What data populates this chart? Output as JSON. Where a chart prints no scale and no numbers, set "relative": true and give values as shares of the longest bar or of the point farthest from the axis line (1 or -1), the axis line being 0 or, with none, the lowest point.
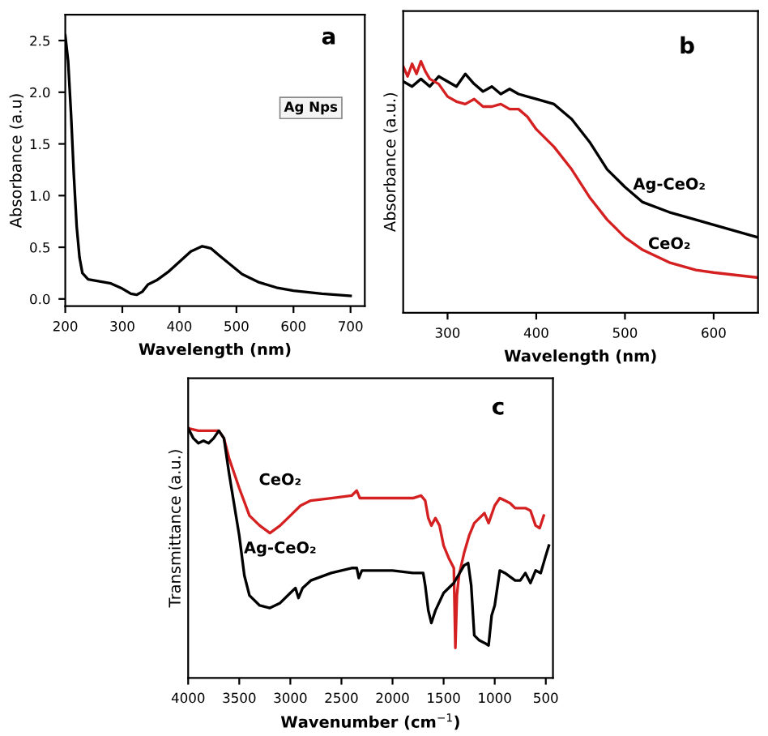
{
  "chart_data": [
    {
      "type": "line",
      "xlabel": "Wavelength (nm)",
      "ylabel": "Absorbance (a.u)",
      "annotations": [
        "a",
        "Ag Nps"
      ],
      "xlim": [
        200,
        725
      ],
      "ylim": [
        -0.07,
        2.75
      ],
      "xticks": [
        200,
        300,
        400,
        500,
        600,
        700
      ],
      "yticks": [
        {
          "value": 0,
          "label": "0.0"
        },
        0.5,
        {
          "value": 1,
          "label": "1.0"
        },
        1.5,
        {
          "value": 2,
          "label": "2.0"
        },
        2.5
      ],
      "grid": false,
      "legend": false,
      "series": [
        {
          "color": "#000000",
          "x": [
            200,
            205,
            210,
            215,
            220,
            225,
            230,
            240,
            260,
            280,
            300,
            315,
            325,
            335,
            345,
            360,
            380,
            400,
            420,
            440,
            455,
            470,
            490,
            510,
            540,
            570,
            600,
            650,
            700
          ],
          "values": [
            2.55,
            2.3,
            1.8,
            1.2,
            0.7,
            0.4,
            0.25,
            0.19,
            0.17,
            0.15,
            0.1,
            0.05,
            0.04,
            0.07,
            0.14,
            0.18,
            0.26,
            0.36,
            0.46,
            0.51,
            0.49,
            0.42,
            0.33,
            0.24,
            0.16,
            0.11,
            0.08,
            0.05,
            0.03
          ]
        }
      ]
    },
    {
      "type": "line",
      "relative": true,
      "xlabel": "Wavelength (nm)",
      "ylabel": "Absorbance (a.u.)",
      "annotations": [
        "b"
      ],
      "xlim": [
        250,
        650
      ],
      "xticks": [
        300,
        400,
        500,
        600
      ],
      "tick_labels": "x",
      "grid": false,
      "legend": false,
      "series": [
        {
          "name": "Ag-CeO₂",
          "color": "#000000",
          "x": [
            250,
            260,
            270,
            280,
            290,
            300,
            310,
            320,
            330,
            340,
            350,
            360,
            370,
            380,
            390,
            400,
            420,
            440,
            460,
            480,
            500,
            520,
            550,
            580,
            600,
            650
          ],
          "values": [
            0.92,
            0.9,
            0.93,
            0.9,
            0.94,
            0.92,
            0.9,
            0.95,
            0.91,
            0.88,
            0.9,
            0.87,
            0.89,
            0.87,
            0.86,
            0.85,
            0.83,
            0.77,
            0.68,
            0.57,
            0.5,
            0.44,
            0.4,
            0.37,
            0.35,
            0.3
          ]
        },
        {
          "name": "CeO₂",
          "color": "#d42020",
          "x": [
            250,
            255,
            260,
            265,
            270,
            275,
            280,
            290,
            300,
            310,
            320,
            330,
            340,
            350,
            360,
            370,
            380,
            390,
            400,
            420,
            440,
            460,
            480,
            500,
            520,
            550,
            580,
            600,
            650
          ],
          "values": [
            0.98,
            0.94,
            0.99,
            0.95,
            1.0,
            0.96,
            0.93,
            0.91,
            0.86,
            0.84,
            0.83,
            0.85,
            0.82,
            0.82,
            0.83,
            0.81,
            0.81,
            0.78,
            0.73,
            0.66,
            0.57,
            0.46,
            0.37,
            0.3,
            0.25,
            0.2,
            0.17,
            0.16,
            0.14
          ]
        }
      ]
    },
    {
      "type": "line",
      "relative": true,
      "xlabel": "Wavenumber (cm$^{−1}$)",
      "ylabel": "Transmittance (a.u.)",
      "annotations": [
        "c"
      ],
      "xlim": [
        4000,
        430
      ],
      "xticks": [
        4000,
        3500,
        3000,
        2500,
        2000,
        1500,
        1000,
        500
      ],
      "tick_labels": "x",
      "grid": false,
      "legend": false,
      "series": [
        {
          "name": "CeO₂",
          "color": "#d42020",
          "x": [
            4000,
            3900,
            3700,
            3650,
            3600,
            3500,
            3400,
            3300,
            3200,
            3100,
            3000,
            2900,
            2800,
            2600,
            2400,
            2350,
            2320,
            2200,
            2000,
            1800,
            1720,
            1680,
            1650,
            1620,
            1580,
            1540,
            1500,
            1450,
            1400,
            1385,
            1370,
            1350,
            1300,
            1250,
            1200,
            1100,
            1060,
            1000,
            950,
            900,
            850,
            800,
            700,
            650,
            600,
            560,
            520
          ],
          "values": [
            1.0,
            0.99,
            0.99,
            0.96,
            0.88,
            0.76,
            0.65,
            0.61,
            0.58,
            0.61,
            0.65,
            0.69,
            0.71,
            0.72,
            0.73,
            0.75,
            0.72,
            0.72,
            0.72,
            0.72,
            0.73,
            0.71,
            0.64,
            0.61,
            0.64,
            0.61,
            0.53,
            0.48,
            0.44,
            0.12,
            0.33,
            0.41,
            0.5,
            0.57,
            0.62,
            0.66,
            0.62,
            0.69,
            0.72,
            0.71,
            0.7,
            0.68,
            0.68,
            0.67,
            0.61,
            0.6,
            0.65
          ]
        },
        {
          "name": "Ag-CeO₂",
          "color": "#000000",
          "x": [
            4000,
            3950,
            3900,
            3850,
            3800,
            3750,
            3700,
            3650,
            3600,
            3500,
            3450,
            3400,
            3300,
            3200,
            3100,
            3000,
            2950,
            2920,
            2880,
            2800,
            2600,
            2400,
            2350,
            2330,
            2300,
            2000,
            1800,
            1700,
            1680,
            1650,
            1620,
            1580,
            1500,
            1400,
            1300,
            1260,
            1230,
            1200,
            1150,
            1100,
            1060,
            1030,
            1000,
            950,
            900,
            800,
            750,
            700,
            650,
            600,
            550,
            500,
            470
          ],
          "values": [
            1.0,
            0.96,
            0.94,
            0.95,
            0.94,
            0.96,
            0.99,
            0.96,
            0.82,
            0.57,
            0.41,
            0.33,
            0.29,
            0.28,
            0.3,
            0.34,
            0.36,
            0.32,
            0.36,
            0.39,
            0.42,
            0.44,
            0.44,
            0.4,
            0.43,
            0.43,
            0.42,
            0.42,
            0.37,
            0.27,
            0.22,
            0.27,
            0.34,
            0.38,
            0.45,
            0.46,
            0.37,
            0.17,
            0.15,
            0.14,
            0.13,
            0.25,
            0.29,
            0.43,
            0.42,
            0.39,
            0.39,
            0.42,
            0.38,
            0.43,
            0.42,
            0.49,
            0.53
          ]
        }
      ]
    }
  ]
}
